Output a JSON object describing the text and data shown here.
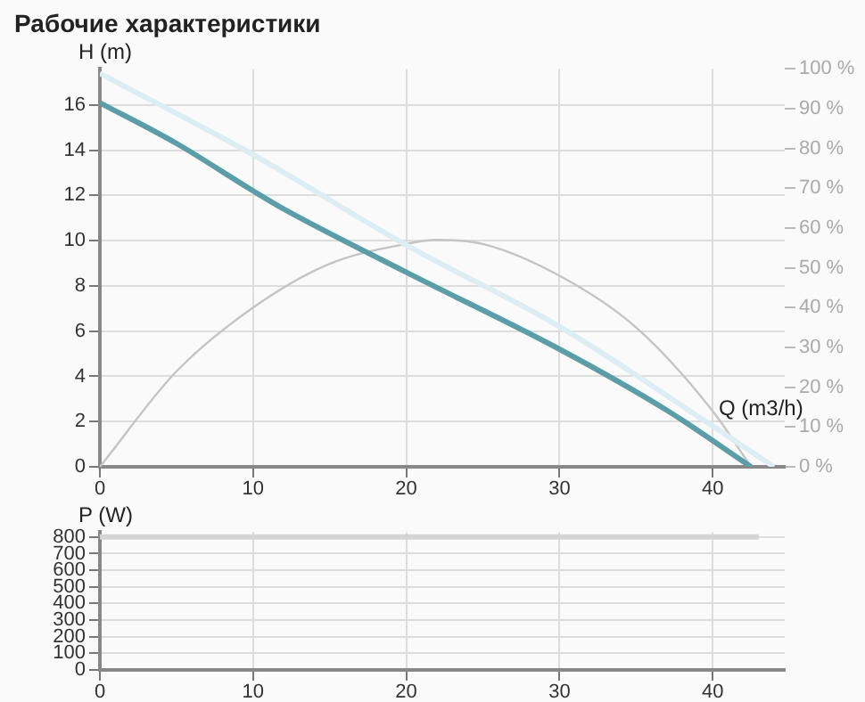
{
  "chart_data": [
    {
      "type": "line",
      "title": "Рабочие характеристики",
      "xlabel": "Q (m3/h)",
      "ylabel": "H (m)",
      "xlim": [
        0,
        44.7
      ],
      "xticks": [
        0,
        10,
        20,
        30,
        40
      ],
      "ylim": [
        0,
        17.6
      ],
      "yticks": [
        0,
        2,
        4,
        6,
        8,
        10,
        12,
        14,
        16
      ],
      "y2lim": [
        0,
        100
      ],
      "y2ticks": [
        {
          "value": 0,
          "label": "0 %"
        },
        {
          "value": 10,
          "label": "10 %"
        },
        {
          "value": 20,
          "label": "20 %"
        },
        {
          "value": 30,
          "label": "30 %"
        },
        {
          "value": 40,
          "label": "40 %"
        },
        {
          "value": 50,
          "label": "50 %"
        },
        {
          "value": 60,
          "label": "60 %"
        },
        {
          "value": 70,
          "label": "70 %"
        },
        {
          "value": 80,
          "label": "80 %"
        },
        {
          "value": 90,
          "label": "90 %"
        },
        {
          "value": 100,
          "label": "100 %"
        }
      ],
      "grid": true,
      "marker": "none",
      "series": [
        {
          "color": "#dcedf4",
          "x": [
            0,
            10,
            20,
            30,
            40,
            44
          ],
          "values": [
            17.4,
            13.8,
            9.8,
            6.2,
            1.8,
            0
          ]
        },
        {
          "color": "#5b9ea8",
          "x": [
            0,
            5,
            10,
            12,
            20,
            30,
            37,
            42.5
          ],
          "values": [
            16.1,
            14.3,
            12.2,
            11.4,
            8.6,
            5.2,
            2.5,
            0
          ]
        },
        {
          "color": "#c4c4c4",
          "axis": "y2",
          "x": [
            0,
            5,
            10,
            15,
            20,
            22,
            25,
            30,
            35,
            40,
            42.5
          ],
          "values": [
            0,
            24,
            40,
            51,
            56,
            57,
            56,
            48,
            35,
            14,
            0
          ]
        }
      ]
    },
    {
      "type": "line",
      "ylabel": "P (W)",
      "xlim": [
        0,
        44.7
      ],
      "xticks": [
        0,
        10,
        20,
        30,
        40
      ],
      "ylim": [
        0,
        830
      ],
      "yticks": [
        0,
        100,
        200,
        300,
        400,
        500,
        600,
        700,
        800
      ],
      "grid": true,
      "marker": "none",
      "series": [
        {
          "color": "#d4d4d4",
          "x": [
            0,
            43
          ],
          "values": [
            800,
            800
          ]
        }
      ]
    }
  ]
}
